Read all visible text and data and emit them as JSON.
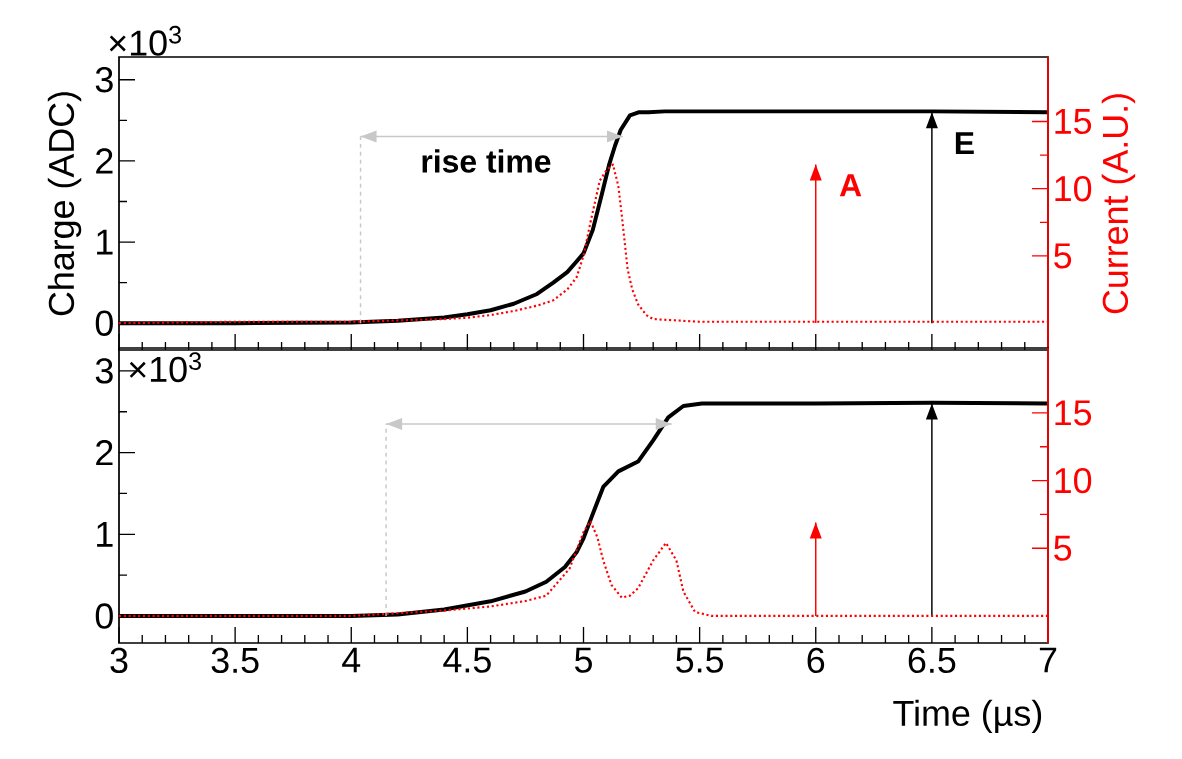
{
  "chart_data": [
    {
      "type": "line",
      "ylabel": "Charge (ADC)",
      "y2label": "Current (A.U.)",
      "xlim": [
        3,
        7
      ],
      "xticks": [
        3,
        3.5,
        4,
        4.5,
        5,
        5.5,
        6,
        6.5,
        7
      ],
      "ylim": [
        -0.33,
        3.28
      ],
      "yticks": [
        0,
        1,
        2,
        3
      ],
      "y2lim": [
        -2,
        19.8
      ],
      "y2ticks": [
        5,
        10,
        15
      ],
      "tick_labels": "y",
      "marker": "none",
      "annotations": [
        "×10$^{3}$",
        "rise time",
        "A",
        "E"
      ],
      "series": [
        {
          "color": "#000000",
          "x": [
            3,
            3.5,
            4,
            4.2,
            4.4,
            4.5,
            4.6,
            4.7,
            4.8,
            4.87,
            4.93,
            4.97,
            5.0,
            5.04,
            5.08,
            5.11,
            5.135,
            5.16,
            5.2,
            5.24,
            5.28,
            5.35,
            5.5,
            6,
            6.5,
            7
          ],
          "values": [
            0,
            0,
            0.01,
            0.03,
            0.07,
            0.11,
            0.16,
            0.24,
            0.36,
            0.5,
            0.63,
            0.76,
            0.86,
            1.15,
            1.6,
            1.95,
            2.18,
            2.38,
            2.56,
            2.6,
            2.6,
            2.61,
            2.61,
            2.61,
            2.61,
            2.6
          ]
        },
        {
          "color": "#ff0000",
          "axis": "y2",
          "line_style": "dotted",
          "x": [
            3,
            3.5,
            4,
            4.2,
            4.4,
            4.5,
            4.6,
            4.7,
            4.8,
            4.87,
            4.93,
            4.97,
            5.0,
            5.03,
            5.07,
            5.1,
            5.127,
            5.15,
            5.165,
            5.19,
            5.21,
            5.235,
            5.27,
            5.3,
            5.5,
            6,
            6.5,
            7
          ],
          "values": [
            0,
            0.1,
            0.1,
            0.2,
            0.3,
            0.4,
            0.6,
            0.9,
            1.3,
            1.7,
            2.5,
            3.4,
            5.0,
            7.5,
            10.6,
            11.4,
            11.8,
            10.2,
            8.0,
            4.0,
            2.5,
            1.4,
            0.6,
            0.3,
            0.1,
            0.1,
            0.1,
            0.1
          ]
        },
        {
          "color": "#c8c8c8",
          "x": [
            4.04,
            5.17
          ],
          "values": [
            2.3,
            2.3
          ]
        },
        {
          "color": "#c8c8c8",
          "line_style": "dashed",
          "x": [
            4.04,
            4.04
          ],
          "values": [
            0,
            2.3
          ]
        },
        {
          "color": "#ff0000",
          "axis": "y2",
          "x": [
            6,
            6
          ],
          "values": [
            0,
            11.8
          ]
        },
        {
          "color": "#000000",
          "x": [
            6.5,
            6.5
          ],
          "values": [
            0,
            2.6
          ]
        }
      ]
    },
    {
      "type": "line",
      "xlabel": "Time (µs)",
      "xlim": [
        3,
        7
      ],
      "xticks": [
        3,
        3.5,
        4,
        4.5,
        5,
        5.5,
        6,
        6.5,
        7
      ],
      "ylim": [
        -0.33,
        3.28
      ],
      "yticks": [
        0,
        1,
        2,
        3
      ],
      "y2lim": [
        -2,
        19.8
      ],
      "y2ticks": [
        5,
        10,
        15
      ],
      "marker": "none",
      "annotations": [
        "×10$^{3}$"
      ],
      "series": [
        {
          "color": "#000000",
          "x": [
            3,
            3.5,
            4,
            4.2,
            4.4,
            4.6,
            4.75,
            4.84,
            4.92,
            4.97,
            5.0,
            5.04,
            5.085,
            5.15,
            5.235,
            5.3,
            5.365,
            5.43,
            5.51,
            6,
            6.5,
            7
          ],
          "values": [
            0,
            0,
            0,
            0.02,
            0.08,
            0.18,
            0.3,
            0.42,
            0.6,
            0.78,
            0.95,
            1.25,
            1.58,
            1.77,
            1.89,
            2.15,
            2.43,
            2.57,
            2.6,
            2.6,
            2.61,
            2.6
          ]
        },
        {
          "color": "#ff0000",
          "axis": "y2",
          "line_style": "dotted",
          "x": [
            3,
            3.5,
            4,
            4.2,
            4.4,
            4.6,
            4.75,
            4.84,
            4.94,
            5.0,
            5.03,
            5.06,
            5.085,
            5.12,
            5.165,
            5.2,
            5.235,
            5.3,
            5.355,
            5.4,
            5.43,
            5.48,
            5.55,
            6,
            6.5,
            7
          ],
          "values": [
            0,
            0,
            0,
            0.2,
            0.4,
            0.7,
            1.1,
            1.5,
            3.5,
            6.2,
            7.0,
            5.8,
            4.1,
            2.3,
            1.35,
            1.5,
            2.05,
            4.1,
            5.4,
            4.1,
            1.8,
            0.3,
            0,
            0,
            0,
            0
          ]
        },
        {
          "color": "#c8c8c8",
          "x": [
            4.15,
            5.38
          ],
          "values": [
            2.35,
            2.35
          ]
        },
        {
          "color": "#c8c8c8",
          "line_style": "dashed",
          "x": [
            4.15,
            4.15
          ],
          "values": [
            0,
            2.35
          ]
        },
        {
          "color": "#ff0000",
          "axis": "y2",
          "x": [
            6,
            6
          ],
          "values": [
            0,
            6.9
          ]
        },
        {
          "color": "#000000",
          "x": [
            6.5,
            6.5
          ],
          "values": [
            0,
            2.6
          ]
        }
      ]
    }
  ]
}
